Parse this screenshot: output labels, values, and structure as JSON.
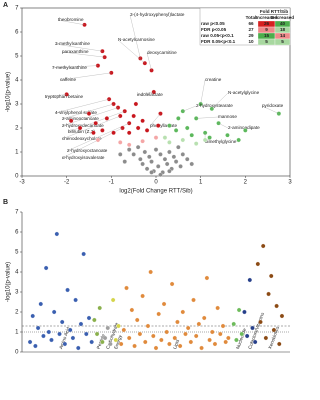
{
  "chart_data": [
    {
      "type": "scatter",
      "panel": "A",
      "frame": true,
      "x_label": "log2(Fold Change RTT/Sib)",
      "y_label": "-log10(p-value)",
      "xlim": [
        -3,
        3
      ],
      "xticks": [
        -3,
        -2,
        -1,
        0,
        1,
        2,
        3
      ],
      "ylim": [
        0,
        7
      ],
      "yticks": [
        0,
        1,
        2,
        3,
        4,
        5,
        6,
        7
      ],
      "series": [
        {
          "color": "#c8161d",
          "x": [
            -1.6,
            -1.2,
            -1.15,
            -1.3,
            -1.0,
            -2.0,
            -1.05,
            -0.95,
            -0.85,
            -0.7,
            -0.8,
            -0.6,
            -0.75,
            -0.35,
            -0.25,
            -0.1,
            -0.05,
            0.1,
            -1.9,
            -1.7,
            -1.5,
            -1.35,
            -1.2,
            -1.1,
            -0.95,
            -0.5,
            -0.4,
            -0.3,
            -0.2,
            -0.45,
            0.05,
            -0.6,
            -1.4
          ],
          "values": [
            6.3,
            5.2,
            4.95,
            4.6,
            4.3,
            3.4,
            3.2,
            3.0,
            2.85,
            2.7,
            2.5,
            2.2,
            2.0,
            4.9,
            4.7,
            4.4,
            3.5,
            2.6,
            2.3,
            2.0,
            2.6,
            2.2,
            1.9,
            2.4,
            1.8,
            2.5,
            2.0,
            2.3,
            1.9,
            3.0,
            2.1,
            1.8,
            1.8
          ],
          "labels": [
            "theobromine",
            "3-methylxanthine",
            "paraxanthine",
            "7-methylxanthine",
            "caffeine",
            "tryptophan betaine",
            "4-vinylphenol sulfate",
            "2-aminooctanoate",
            "2-hydroxydecanoate",
            "bilirubin (Z,Z)",
            "chenodeoxycholate",
            "2-hydroxyoctanoate",
            "α-hydroxyisovalerate",
            "3-(4-hydroxyphenyl)lactate",
            "N-acetylcarnosine",
            "deoxycarnitine",
            "indolelactate",
            "phenyllactate",
            null,
            null,
            null,
            null,
            null,
            null,
            null,
            null,
            null,
            null,
            null,
            null,
            null,
            null,
            null
          ]
        },
        {
          "color": "#5cb85c",
          "x": [
            1.0,
            1.25,
            0.6,
            0.9,
            1.4,
            1.1,
            2.75,
            0.3,
            0.45,
            0.7,
            0.8,
            1.2,
            1.6,
            1.85,
            0.5,
            2.0
          ],
          "values": [
            3.0,
            2.8,
            2.7,
            2.4,
            2.2,
            1.8,
            2.6,
            2.1,
            1.9,
            2.0,
            1.7,
            1.6,
            1.7,
            1.5,
            2.4,
            1.9
          ],
          "labels": [
            "creatine",
            "N-acetylglycine",
            "2-hydroxystearate",
            "mannose",
            "2-aminoadipate",
            "dimethylglycine",
            "pyridoxate",
            null,
            null,
            null,
            null,
            null,
            null,
            null,
            null,
            null
          ]
        },
        {
          "color": "#f4a6a6",
          "x": [
            -1.3,
            -0.8,
            -0.6,
            -0.3,
            0.0
          ],
          "values": [
            1.5,
            1.4,
            1.3,
            1.45,
            1.6
          ]
        },
        {
          "color": "#b8e0b0",
          "x": [
            0.3,
            0.6,
            0.9,
            1.1,
            0.2
          ],
          "values": [
            1.4,
            1.5,
            1.35,
            1.5,
            1.6
          ]
        },
        {
          "color": "#8c8c8c",
          "x": [
            -0.6,
            -0.5,
            -0.4,
            -0.35,
            -0.3,
            -0.25,
            -0.2,
            -0.15,
            -0.1,
            -0.05,
            0,
            0.05,
            0.1,
            0.15,
            0.2,
            0.25,
            0.3,
            0.35,
            0.4,
            0.45,
            0.5,
            0.55,
            0.6,
            0.7,
            0.8,
            -0.7,
            -0.8,
            0.1,
            -0.1,
            0.3
          ],
          "values": [
            1.1,
            0.9,
            1.2,
            0.7,
            0.5,
            1.0,
            0.3,
            0.8,
            0.6,
            0.2,
            1.1,
            0.4,
            0.9,
            0.15,
            0.7,
            0.5,
            1.0,
            0.3,
            0.8,
            0.6,
            1.2,
            0.4,
            0.9,
            0.7,
            0.5,
            0.6,
            0.9,
            0.05,
            0.15,
            0.2
          ]
        }
      ],
      "table": {
        "title": "Fold RTT/Sib",
        "columns": [
          "Total",
          "Increased",
          "Decreased"
        ],
        "rows": [
          {
            "label": "raw p<0.05",
            "values": [
              66,
              26,
              40
            ]
          },
          {
            "label": "FDR p<0.05",
            "values": [
              27,
              9,
              18
            ]
          },
          {
            "label": "raw 0.05<p<0.1",
            "values": [
              29,
              15,
              14
            ]
          },
          {
            "label": "FDR 0.05<p<0.1",
            "values": [
              10,
              5,
              5
            ]
          }
        ]
      }
    },
    {
      "type": "scatter",
      "panel": "B",
      "frame": false,
      "y_label": "-log10(p-value)",
      "xlim": [
        0,
        100
      ],
      "ylim": [
        0,
        7
      ],
      "yticks": [
        0,
        1,
        2,
        3,
        4,
        5,
        6,
        7
      ],
      "reference_lines": [
        1.3,
        1
      ],
      "series": [
        {
          "name": "Amino Acid",
          "color": "#3a5fb0",
          "x": [
            3,
            4,
            5,
            6,
            7,
            8,
            9,
            10,
            11,
            12,
            13,
            14,
            15,
            16,
            17,
            18,
            19,
            20,
            21,
            22,
            23,
            24,
            25,
            26
          ],
          "values": [
            0.5,
            1.8,
            0.3,
            1.2,
            2.4,
            0.8,
            4.2,
            1.0,
            0.6,
            2.0,
            5.9,
            0.9,
            1.5,
            0.4,
            3.1,
            1.1,
            0.7,
            2.6,
            0.2,
            1.4,
            4.9,
            0.9,
            1.7,
            0.5
          ]
        },
        {
          "name": "Peptide",
          "color": "#8ab04c",
          "x": [
            27,
            28,
            29,
            30
          ],
          "values": [
            1.6,
            0.9,
            2.2,
            0.5
          ]
        },
        {
          "name": "Carbohydrate",
          "color": "#a0a0a0",
          "x": [
            31,
            32,
            33
          ],
          "values": [
            0.7,
            1.2,
            0.4
          ]
        },
        {
          "name": "Energy",
          "color": "#d4d44a",
          "x": [
            34,
            35,
            36
          ],
          "values": [
            2.6,
            0.6,
            1.3
          ]
        },
        {
          "name": "Lipid",
          "color": "#e08a3c",
          "x": [
            37,
            38,
            39,
            40,
            41,
            42,
            43,
            44,
            45,
            46,
            47,
            48,
            49,
            50,
            51,
            52,
            53,
            54,
            55,
            56,
            57,
            58,
            59,
            60,
            61,
            62,
            63,
            64,
            65,
            66,
            67,
            68,
            69,
            70,
            71,
            72,
            73,
            74,
            75,
            76,
            77
          ],
          "values": [
            0.4,
            1.1,
            3.2,
            0.7,
            2.1,
            0.3,
            1.6,
            0.9,
            2.8,
            0.5,
            1.3,
            4.0,
            0.8,
            0.2,
            1.9,
            0.6,
            2.4,
            1.0,
            0.4,
            3.4,
            0.7,
            1.5,
            0.3,
            2.0,
            0.9,
            1.2,
            0.5,
            2.6,
            0.8,
            1.4,
            0.2,
            1.7,
            3.7,
            0.6,
            1.0,
            0.4,
            2.2,
            0.9,
            1.3,
            0.5,
            0.7
          ]
        },
        {
          "name": "Nucleotide",
          "color": "#6dbb5a",
          "x": [
            79,
            80,
            81,
            82
          ],
          "values": [
            1.4,
            0.6,
            2.1,
            0.9
          ]
        },
        {
          "name": "Cofactors/Vitamins",
          "color": "#263f8a",
          "x": [
            83,
            84,
            85,
            86,
            87
          ],
          "values": [
            2.0,
            0.8,
            3.6,
            1.2,
            0.5
          ]
        },
        {
          "name": "Xenobiotics",
          "color": "#8b4a14",
          "x": [
            88,
            89,
            90,
            91,
            92,
            93,
            94,
            95,
            96,
            97
          ],
          "values": [
            4.4,
            1.5,
            5.3,
            0.7,
            2.9,
            3.8,
            1.1,
            2.3,
            0.4,
            1.8
          ]
        }
      ]
    }
  ]
}
